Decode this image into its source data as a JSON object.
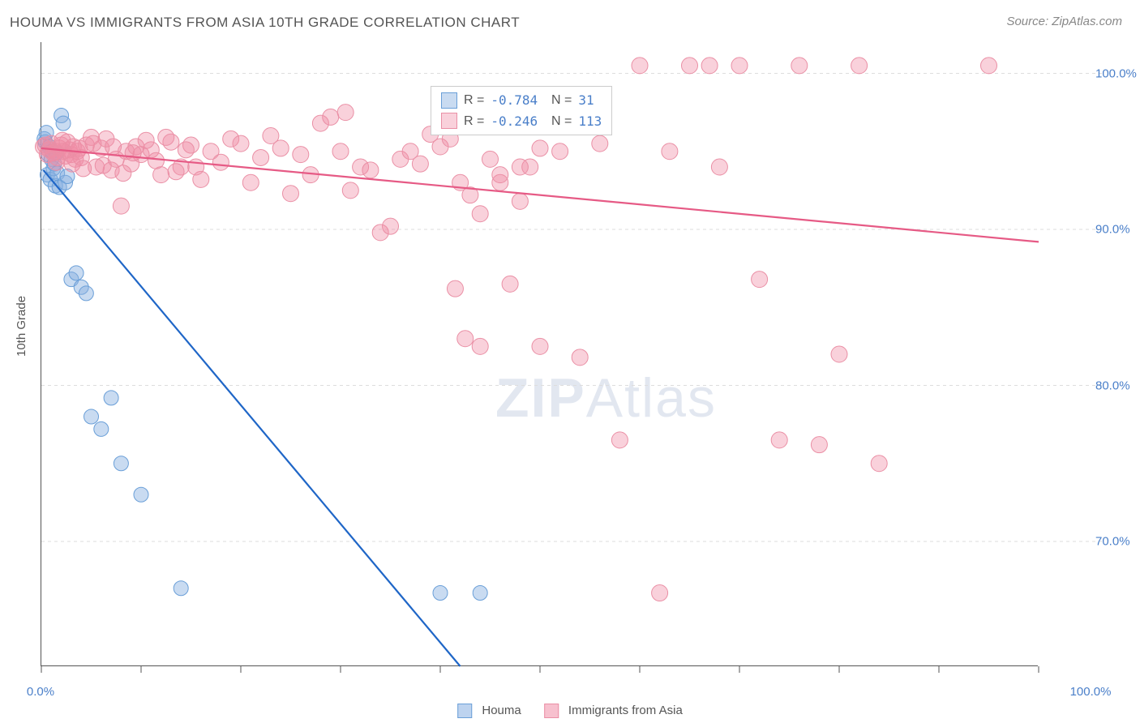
{
  "title": "HOUMA VS IMMIGRANTS FROM ASIA 10TH GRADE CORRELATION CHART",
  "source": "Source: ZipAtlas.com",
  "y_axis_label": "10th Grade",
  "watermark_bold": "ZIP",
  "watermark_rest": "Atlas",
  "chart": {
    "type": "scatter",
    "xlim": [
      0,
      100
    ],
    "ylim": [
      62,
      102
    ],
    "x_ticks": [
      0,
      10,
      20,
      30,
      40,
      50,
      60,
      70,
      80,
      90,
      100
    ],
    "y_ticks": [
      70,
      80,
      90,
      100
    ],
    "x_tick_labels": {
      "0": "0.0%",
      "100": "100.0%"
    },
    "y_tick_labels": {
      "70": "70.0%",
      "80": "80.0%",
      "90": "90.0%",
      "100": "100.0%"
    },
    "grid_color": "#dddddd",
    "axis_color": "#555555",
    "tick_label_color": "#4a7fc9",
    "background": "#ffffff",
    "series": [
      {
        "name": "Houma",
        "fill": "rgba(135,175,225,0.45)",
        "stroke": "#6a9fd8",
        "color_hex": "#8cb4e2",
        "marker_r": 9,
        "R": "-0.784",
        "N": "31",
        "trend": {
          "x1": 0.2,
          "y1": 93.8,
          "x2": 42,
          "y2": 62,
          "color": "#1f66c7",
          "width": 2.2
        },
        "points": [
          [
            0.3,
            95.8
          ],
          [
            0.4,
            95.6
          ],
          [
            0.5,
            96.2
          ],
          [
            0.6,
            93.5
          ],
          [
            0.7,
            94.8
          ],
          [
            0.8,
            95.3
          ],
          [
            0.9,
            93.2
          ],
          [
            1.0,
            94.5
          ],
          [
            1.1,
            95.0
          ],
          [
            1.2,
            93.9
          ],
          [
            1.3,
            94.2
          ],
          [
            1.4,
            92.8
          ],
          [
            1.5,
            94.9
          ],
          [
            1.6,
            93.6
          ],
          [
            1.8,
            92.7
          ],
          [
            2.0,
            97.3
          ],
          [
            2.2,
            96.8
          ],
          [
            2.4,
            93.0
          ],
          [
            2.6,
            93.4
          ],
          [
            3.0,
            86.8
          ],
          [
            3.5,
            87.2
          ],
          [
            4.0,
            86.3
          ],
          [
            4.5,
            85.9
          ],
          [
            5.0,
            78.0
          ],
          [
            6.0,
            77.2
          ],
          [
            7.0,
            79.2
          ],
          [
            8.0,
            75.0
          ],
          [
            10,
            73.0
          ],
          [
            14,
            67.0
          ],
          [
            40,
            66.7
          ],
          [
            44,
            66.7
          ]
        ]
      },
      {
        "name": "Immigrants from Asia",
        "fill": "rgba(240,140,165,0.40)",
        "stroke": "#ea8fa5",
        "color_hex": "#f4a6b9",
        "marker_r": 10,
        "R": "-0.246",
        "N": "113",
        "trend": {
          "x1": 0,
          "y1": 95.2,
          "x2": 100,
          "y2": 89.2,
          "color": "#e65a85",
          "width": 2.2
        },
        "points": [
          [
            0.2,
            95.3
          ],
          [
            0.4,
            95.4
          ],
          [
            0.6,
            94.8
          ],
          [
            0.8,
            95.1
          ],
          [
            1.0,
            95.5
          ],
          [
            1.2,
            94.9
          ],
          [
            1.4,
            95.0
          ],
          [
            1.6,
            94.6
          ],
          [
            1.8,
            95.2
          ],
          [
            2.0,
            95.4
          ],
          [
            2.2,
            95.0
          ],
          [
            2.4,
            94.7
          ],
          [
            2.6,
            95.6
          ],
          [
            2.8,
            95.1
          ],
          [
            3.0,
            94.8
          ],
          [
            3.2,
            95.3
          ],
          [
            3.4,
            94.5
          ],
          [
            3.6,
            95.0
          ],
          [
            3.8,
            95.2
          ],
          [
            4.0,
            94.6
          ],
          [
            4.5,
            95.4
          ],
          [
            5.0,
            95.9
          ],
          [
            5.5,
            94.0
          ],
          [
            6.0,
            95.2
          ],
          [
            6.5,
            95.8
          ],
          [
            7.0,
            93.8
          ],
          [
            7.5,
            94.5
          ],
          [
            8.0,
            91.5
          ],
          [
            8.5,
            95.0
          ],
          [
            9.0,
            94.2
          ],
          [
            9.5,
            95.3
          ],
          [
            10,
            94.8
          ],
          [
            11,
            95.1
          ],
          [
            12,
            93.5
          ],
          [
            13,
            95.6
          ],
          [
            14,
            94.0
          ],
          [
            15,
            95.4
          ],
          [
            16,
            93.2
          ],
          [
            17,
            95.0
          ],
          [
            18,
            94.3
          ],
          [
            19,
            95.8
          ],
          [
            20,
            95.5
          ],
          [
            21,
            93.0
          ],
          [
            22,
            94.6
          ],
          [
            23,
            96.0
          ],
          [
            24,
            95.2
          ],
          [
            25,
            92.3
          ],
          [
            26,
            94.8
          ],
          [
            27,
            93.5
          ],
          [
            28,
            96.8
          ],
          [
            29,
            97.2
          ],
          [
            30,
            95.0
          ],
          [
            30.5,
            97.5
          ],
          [
            31,
            92.5
          ],
          [
            32,
            94.0
          ],
          [
            33,
            93.8
          ],
          [
            34,
            89.8
          ],
          [
            35,
            90.2
          ],
          [
            36,
            94.5
          ],
          [
            37,
            95.0
          ],
          [
            38,
            94.2
          ],
          [
            39,
            96.1
          ],
          [
            40,
            95.3
          ],
          [
            41,
            95.8
          ],
          [
            42,
            93.0
          ],
          [
            43,
            92.2
          ],
          [
            44,
            91.0
          ],
          [
            45,
            94.5
          ],
          [
            46,
            93.0
          ],
          [
            47,
            86.5
          ],
          [
            48,
            91.8
          ],
          [
            49,
            94.0
          ],
          [
            50,
            95.2
          ],
          [
            41.5,
            86.2
          ],
          [
            42.5,
            83.0
          ],
          [
            44,
            82.5
          ],
          [
            46,
            93.5
          ],
          [
            48,
            94.0
          ],
          [
            50,
            82.5
          ],
          [
            52,
            95.0
          ],
          [
            54,
            81.8
          ],
          [
            56,
            95.5
          ],
          [
            58,
            76.5
          ],
          [
            60,
            100.5
          ],
          [
            62,
            66.7
          ],
          [
            63,
            95.0
          ],
          [
            65,
            100.5
          ],
          [
            67,
            100.5
          ],
          [
            68,
            94.0
          ],
          [
            70,
            100.5
          ],
          [
            72,
            86.8
          ],
          [
            74,
            76.5
          ],
          [
            76,
            100.5
          ],
          [
            78,
            76.2
          ],
          [
            80,
            82.0
          ],
          [
            82,
            100.5
          ],
          [
            84,
            75.0
          ],
          [
            95,
            100.5
          ],
          [
            1.5,
            94.3
          ],
          [
            2.1,
            95.7
          ],
          [
            3.1,
            94.2
          ],
          [
            4.2,
            93.9
          ],
          [
            5.2,
            95.5
          ],
          [
            6.2,
            94.1
          ],
          [
            7.2,
            95.3
          ],
          [
            8.2,
            93.6
          ],
          [
            9.2,
            94.9
          ],
          [
            10.5,
            95.7
          ],
          [
            11.5,
            94.4
          ],
          [
            12.5,
            95.9
          ],
          [
            13.5,
            93.7
          ],
          [
            14.5,
            95.1
          ],
          [
            15.5,
            94.0
          ]
        ]
      }
    ]
  },
  "legend": {
    "items": [
      {
        "label": "Houma",
        "fill": "rgba(135,175,225,0.55)",
        "border": "#6a9fd8"
      },
      {
        "label": "Immigrants from Asia",
        "fill": "rgba(240,140,165,0.55)",
        "border": "#ea8fa5"
      }
    ]
  }
}
